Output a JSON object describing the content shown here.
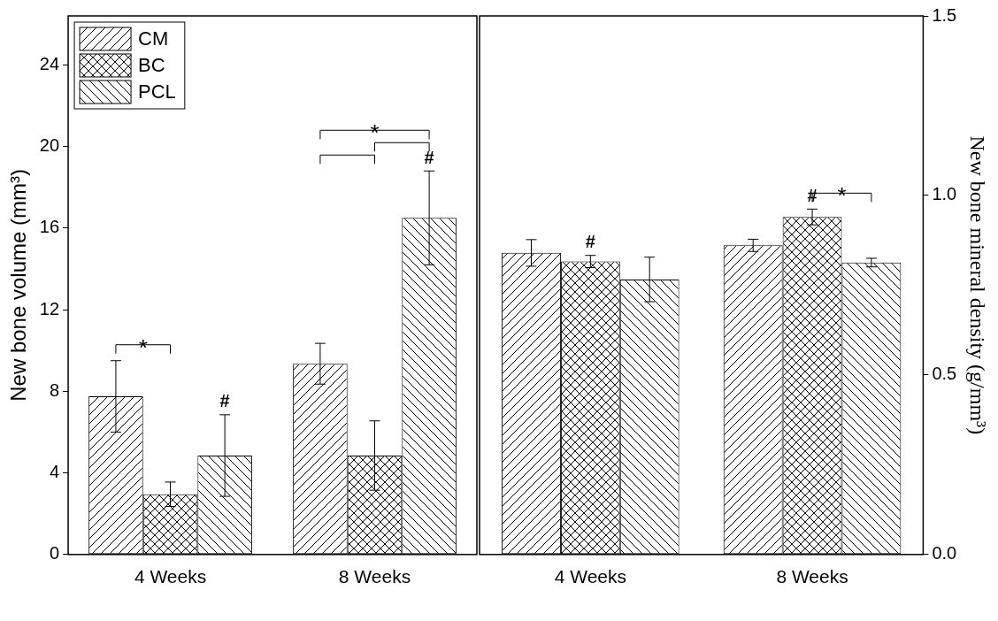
{
  "chart_data": [
    {
      "type": "bar",
      "y_label": "New bone volume (mm³)",
      "categories": [
        "4 Weeks",
        "8 Weeks"
      ],
      "series": [
        {
          "name": "CM",
          "color": "#000000",
          "values": [
            7.75,
            9.35
          ],
          "errors": [
            1.75,
            1.0
          ]
        },
        {
          "name": "BC",
          "color": "#000000",
          "values": [
            2.95,
            4.85
          ],
          "errors": [
            0.6,
            1.7
          ]
        },
        {
          "name": "PCL",
          "color": "#000000",
          "values": [
            4.85,
            16.5
          ],
          "errors": [
            2.0,
            2.3
          ]
        }
      ],
      "ylim": [
        0,
        26.4
      ],
      "yticks": [
        0,
        4,
        8,
        12,
        16,
        20,
        24
      ],
      "grid": false,
      "legend": "upper left",
      "brackets": [
        {
          "category": "4 Weeks",
          "from": "CM",
          "to": "BC",
          "text": "*"
        },
        {
          "category": "8 Weeks",
          "from": "CM",
          "to": "BC"
        },
        {
          "category": "8 Weeks",
          "from": "BC",
          "to": "PCL"
        },
        {
          "category": "8 Weeks",
          "from": "CM",
          "to": "PCL",
          "text": "*"
        }
      ],
      "markers": [
        {
          "category": "4 Weeks",
          "series": "PCL",
          "text": "#"
        },
        {
          "category": "8 Weeks",
          "series": "PCL",
          "text": "#"
        }
      ]
    },
    {
      "type": "bar",
      "y_label": "New bone mineral density (g/mm³)",
      "categories": [
        "4 Weeks",
        "8 Weeks"
      ],
      "series": [
        {
          "name": "CM",
          "color": "#000000",
          "values": [
            0.84,
            0.861
          ],
          "errors": [
            0.037,
            0.017
          ]
        },
        {
          "name": "BC",
          "color": "#000000",
          "values": [
            0.816,
            0.94
          ],
          "errors": [
            0.017,
            0.022
          ]
        },
        {
          "name": "PCL",
          "color": "#000000",
          "values": [
            0.766,
            0.813
          ],
          "errors": [
            0.062,
            0.012
          ]
        }
      ],
      "ylim": [
        0,
        1.5
      ],
      "yticks": [
        {
          "value": 0,
          "label": "0.0"
        },
        {
          "value": 0.5,
          "label": "0.5"
        },
        {
          "value": 1,
          "label": "1.0"
        },
        {
          "value": 1.5,
          "label": "1.5"
        }
      ],
      "grid": false,
      "brackets": [
        {
          "category": "8 Weeks",
          "from": "BC",
          "to": "PCL",
          "text": "*"
        }
      ],
      "markers": [
        {
          "category": "4 Weeks",
          "series": "BC",
          "text": "#"
        },
        {
          "category": "8 Weeks",
          "series": "BC",
          "text": "#"
        }
      ]
    }
  ]
}
